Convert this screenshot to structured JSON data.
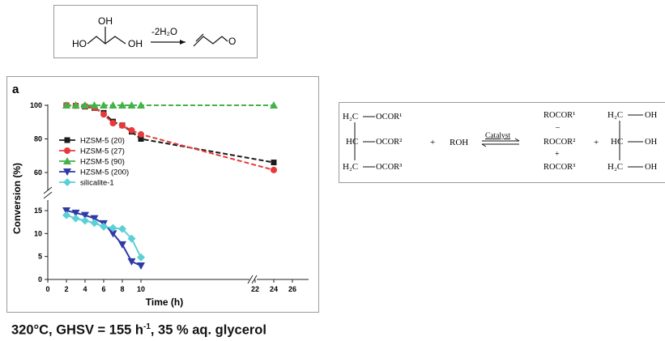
{
  "glycerol_reaction": {
    "reactant_labels": [
      "HO",
      "OH",
      "OH"
    ],
    "condition": "-2H₂O",
    "product_label": "O"
  },
  "chart_panel_label": "a",
  "chart_data": {
    "type": "line",
    "title": "",
    "xlabel": "Time (h)",
    "ylabel": "Conversion (%)",
    "x_ticks": [
      "0",
      "2",
      "4",
      "6",
      "8",
      "10",
      "22",
      "24",
      "26"
    ],
    "y_ticks_upper": [
      "60",
      "80",
      "100"
    ],
    "y_ticks_lower": [
      "0",
      "5",
      "10",
      "15"
    ],
    "xlim": [
      0,
      26
    ],
    "x_axis_break": [
      10.5,
      22.5
    ],
    "y_axis_break": [
      16,
      55
    ],
    "legend_position": "left-middle",
    "series": [
      {
        "name": "HZSM-5 (20)",
        "color": "#1a1a1a",
        "marker": "square",
        "x": [
          2,
          3,
          4,
          5,
          6,
          7,
          8,
          9,
          10,
          24
        ],
        "y": [
          100,
          99.7,
          99.2,
          98.4,
          95.5,
          90.3,
          88.1,
          84.3,
          80,
          66
        ]
      },
      {
        "name": "HZSM-5 (27)",
        "color": "#e8393a",
        "marker": "circle",
        "x": [
          2,
          3,
          4,
          5,
          6,
          7,
          8,
          9,
          10,
          24
        ],
        "y": [
          100,
          99.8,
          99.5,
          98.6,
          94.6,
          89.4,
          88,
          85.1,
          82.7,
          61.5
        ]
      },
      {
        "name": "HZSM-5 (90)",
        "color": "#42b249",
        "marker": "triangle-up",
        "x": [
          2,
          3,
          4,
          5,
          6,
          7,
          8,
          9,
          10,
          24
        ],
        "y": [
          100,
          100,
          100,
          100,
          100,
          100,
          100,
          100,
          100,
          100
        ]
      },
      {
        "name": "HZSM-5 (200)",
        "color": "#2f3aa6",
        "marker": "triangle-down",
        "x": [
          2,
          3,
          4,
          5,
          6,
          7,
          8,
          9,
          10
        ],
        "y": [
          15,
          14.5,
          14,
          13.3,
          12.2,
          10,
          7.6,
          3.9,
          3
        ]
      },
      {
        "name": "silicalite-1",
        "color": "#5bd0d6",
        "marker": "diamond",
        "x": [
          2,
          3,
          4,
          5,
          6,
          7,
          8,
          9,
          10
        ],
        "y": [
          14,
          13.3,
          12.8,
          12.3,
          11.5,
          11.2,
          11,
          8.9,
          4.8
        ]
      }
    ]
  },
  "transesterification": {
    "reactant_groups": [
      "OCOR¹",
      "OCOR²",
      "OCOR³"
    ],
    "reactant_carbons": [
      "H₂C",
      "HC",
      "H₂C"
    ],
    "plus": "+",
    "alcohol": "ROH",
    "catalyst": "Catalyst",
    "esters": [
      "ROCOR¹",
      "ROCOR²",
      "ROCOR³"
    ],
    "ester_separators": [
      "–",
      "+"
    ],
    "glycerol_carbons": [
      "H₂C",
      "HC",
      "H₂C"
    ],
    "glycerol_groups": [
      "OH",
      "OH",
      "OH"
    ]
  },
  "caption": {
    "prefix": "320°C, GHSV = 155 h",
    "exponent": "-1",
    "suffix": ", 35 % aq. glycerol"
  }
}
